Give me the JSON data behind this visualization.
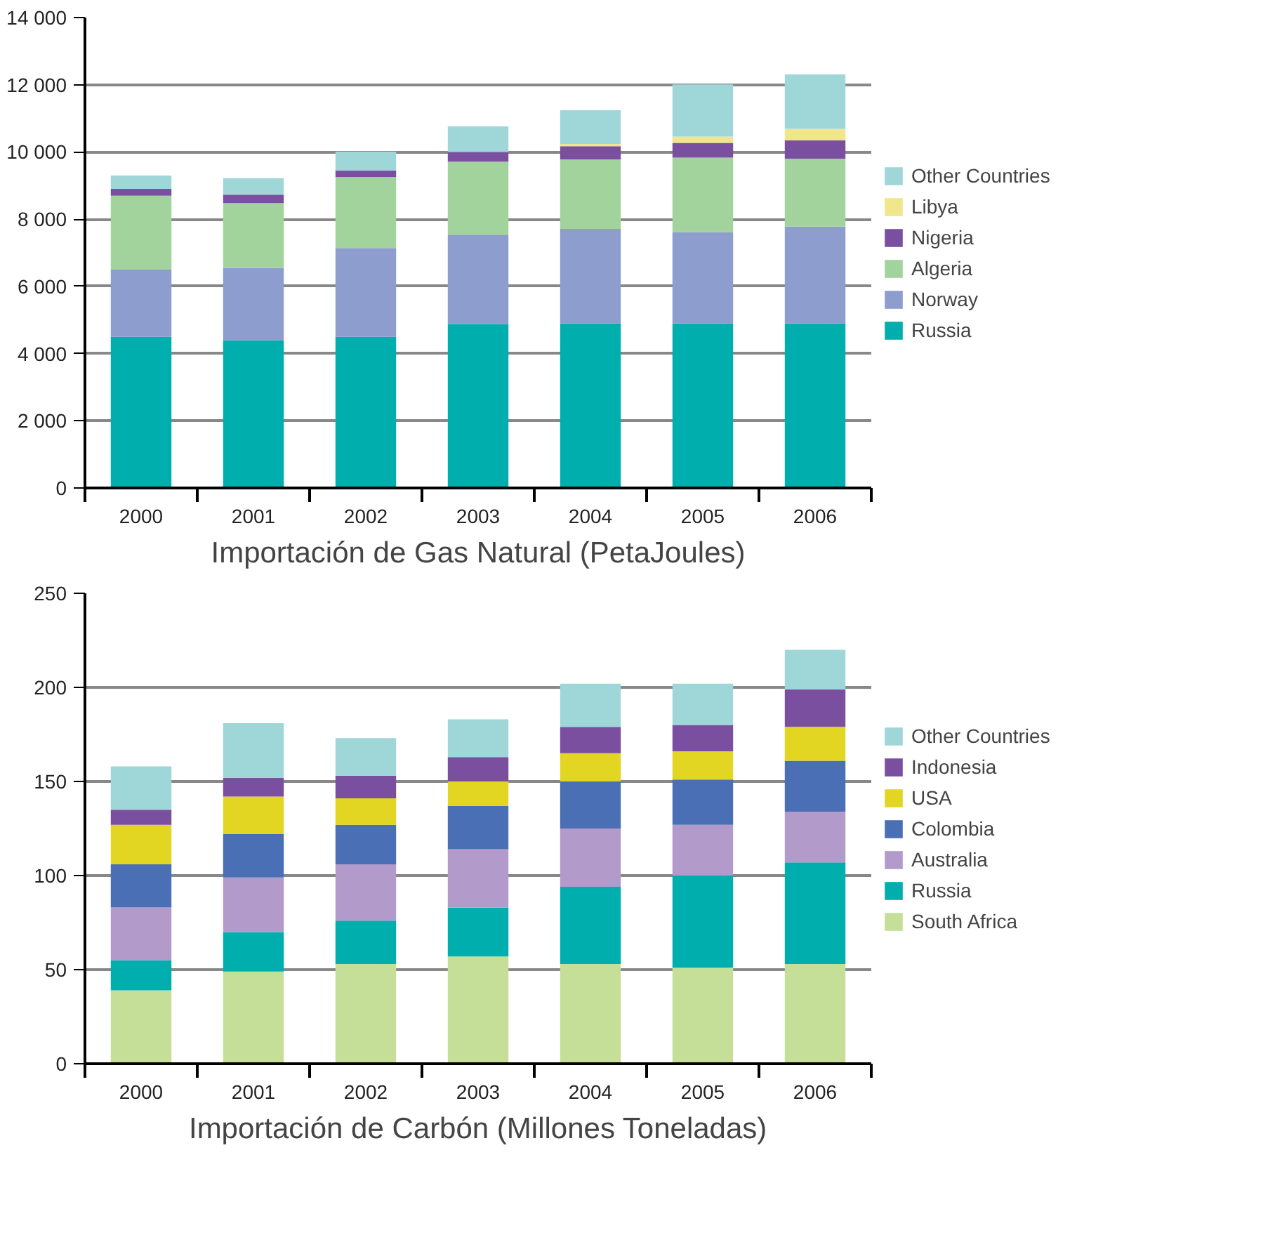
{
  "chart_data": [
    {
      "type": "bar",
      "stacked": true,
      "title": "Importación de Gas Natural (PetaJoules)",
      "categories": [
        "2000",
        "2001",
        "2002",
        "2003",
        "2004",
        "2005",
        "2006"
      ],
      "series": [
        {
          "name": "Russia",
          "color": "#00aeae",
          "values": [
            4500,
            4400,
            4500,
            4880,
            4900,
            4900,
            4900
          ]
        },
        {
          "name": "Norway",
          "color": "#8c9dce",
          "values": [
            2000,
            2150,
            2640,
            2660,
            2810,
            2710,
            2880
          ]
        },
        {
          "name": "Algeria",
          "color": "#a2d39c",
          "values": [
            2200,
            1930,
            2110,
            2170,
            2070,
            2220,
            2020
          ]
        },
        {
          "name": "Nigeria",
          "color": "#7b4fa0",
          "values": [
            200,
            250,
            200,
            290,
            390,
            440,
            550
          ]
        },
        {
          "name": "Libya",
          "color": "#f0e68c",
          "values": [
            0,
            0,
            0,
            0,
            70,
            190,
            340
          ]
        },
        {
          "name": "Other Countries",
          "color": "#9fd6d8",
          "values": [
            400,
            490,
            560,
            760,
            1000,
            1550,
            1620
          ]
        }
      ],
      "ylim": [
        0,
        14000
      ],
      "yticks": [
        0,
        {
          "value": 2000,
          "label": "2 000"
        },
        {
          "value": 4000,
          "label": "4 000"
        },
        {
          "value": 6000,
          "label": "6 000"
        },
        {
          "value": 8000,
          "label": "8 000"
        },
        {
          "value": 10000,
          "label": "10 000"
        },
        {
          "value": 12000,
          "label": "12 000"
        },
        {
          "value": 14000,
          "label": "14 000"
        }
      ],
      "grid": "y",
      "legend": "right"
    },
    {
      "type": "bar",
      "stacked": true,
      "title": "Importación de Carbón (Millones Toneladas)",
      "categories": [
        "2000",
        "2001",
        "2002",
        "2003",
        "2004",
        "2005",
        "2006"
      ],
      "series": [
        {
          "name": "South Africa",
          "color": "#c5df99",
          "values": [
            39,
            49,
            53,
            57,
            53,
            51,
            53
          ]
        },
        {
          "name": "Russia",
          "color": "#00aeae",
          "values": [
            16,
            21,
            23,
            26,
            41,
            49,
            54
          ]
        },
        {
          "name": "Australia",
          "color": "#b29acb",
          "values": [
            28,
            29,
            30,
            31,
            31,
            27,
            27
          ]
        },
        {
          "name": "Colombia",
          "color": "#4a6fb5",
          "values": [
            23,
            23,
            21,
            23,
            25,
            24,
            27
          ]
        },
        {
          "name": "USA",
          "color": "#e2d623",
          "values": [
            21,
            20,
            14,
            13,
            15,
            15,
            18
          ]
        },
        {
          "name": "Indonesia",
          "color": "#7b4fa0",
          "values": [
            8,
            10,
            12,
            13,
            14,
            14,
            20
          ]
        },
        {
          "name": "Other Countries",
          "color": "#9fd6d8",
          "values": [
            23,
            29,
            20,
            20,
            23,
            22,
            21
          ]
        }
      ],
      "ylim": [
        0,
        250
      ],
      "yticks": [
        0,
        50,
        100,
        150,
        200,
        250
      ],
      "grid": "y",
      "legend": "right"
    }
  ]
}
